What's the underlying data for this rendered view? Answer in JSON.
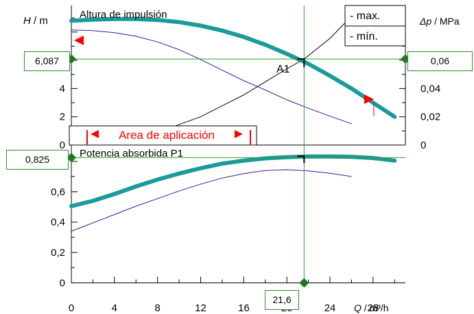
{
  "colors": {
    "max_curve": "#1a9a9a",
    "min_curve": "#2a1aa0",
    "system_curve": "#000000",
    "cursor": "#2ca02c",
    "marker": "#1e7a1e",
    "range": "#ff0000"
  },
  "readouts": {
    "head": "6,087",
    "pressure": "0,06",
    "power": "0,825",
    "flow": "21,6",
    "point": "A1"
  },
  "chart_data": [
    {
      "type": "line",
      "title": "Altura de impulsión",
      "ylabel_left": {
        "sym": "H",
        "unit": " / m"
      },
      "ylabel_right": {
        "sym": "Δp",
        "unit": " / MPa"
      },
      "xlim": [
        0,
        31
      ],
      "ylim": [
        0,
        9.5
      ],
      "y_ticks": [
        0,
        2,
        4,
        6,
        8
      ],
      "y_tick_labels": [
        "0",
        "2",
        "4",
        "",
        ""
      ],
      "y2_ticks": [
        0,
        0.02,
        0.04,
        0.06,
        0.08
      ],
      "y2_tick_labels": [
        "0",
        "0,02",
        "0,04",
        "",
        ""
      ],
      "legend": [
        "- max.",
        "- mín."
      ],
      "legend_position": "top-right",
      "grid": false,
      "series": [
        {
          "name": "max.",
          "x": [
            0,
            2,
            4,
            6,
            8,
            10,
            12,
            14,
            16,
            18,
            20,
            22,
            24,
            26,
            28,
            30
          ],
          "y": [
            8.8,
            8.87,
            8.92,
            8.92,
            8.85,
            8.7,
            8.45,
            8.1,
            7.65,
            7.1,
            6.45,
            5.75,
            4.9,
            4.0,
            3.0,
            2.0
          ]
        },
        {
          "name": "mín.",
          "x": [
            0,
            2,
            4,
            6,
            8,
            10,
            12,
            14,
            16,
            18,
            20,
            22,
            24,
            26
          ],
          "y": [
            8.15,
            8.1,
            7.95,
            7.7,
            7.3,
            6.75,
            6.05,
            5.3,
            4.55,
            3.9,
            3.2,
            2.6,
            2.05,
            1.5
          ]
        },
        {
          "name": "system",
          "x": [
            0,
            4,
            8,
            12,
            16,
            20,
            21.6,
            24,
            26.5
          ],
          "y": [
            0.1,
            0.28,
            0.9,
            2.0,
            3.55,
            5.4,
            6.087,
            7.55,
            9.5
          ]
        }
      ],
      "operating_point": {
        "label": "A1",
        "x": 21.6,
        "y": 6.087
      },
      "application_range": {
        "label": "Area de aplicación",
        "x_start": 1.7,
        "x_end": 18.3
      }
    },
    {
      "type": "line",
      "title": "Potencia absorbida P1",
      "xlabel": {
        "sym": "Q",
        "unit": " / m³/h"
      },
      "xlim": [
        0,
        31
      ],
      "ylim": [
        0,
        0.9
      ],
      "x_ticks": [
        0,
        4,
        8,
        12,
        16,
        20,
        24,
        28
      ],
      "x_tick_labels": [
        "0",
        "4",
        "8",
        "12",
        "16",
        "20",
        "24",
        "28"
      ],
      "y_ticks": [
        0,
        0.2,
        0.4,
        0.6,
        0.8
      ],
      "y_tick_labels": [
        "0",
        "0,2",
        "0,4",
        "0,6",
        ""
      ],
      "grid": false,
      "series": [
        {
          "name": "max.",
          "x": [
            0,
            2,
            4,
            6,
            8,
            10,
            12,
            14,
            16,
            18,
            20,
            22,
            24,
            26,
            28,
            30
          ],
          "y": [
            0.505,
            0.54,
            0.585,
            0.635,
            0.68,
            0.72,
            0.755,
            0.785,
            0.805,
            0.82,
            0.828,
            0.832,
            0.832,
            0.83,
            0.822,
            0.805
          ]
        },
        {
          "name": "mín.",
          "x": [
            0,
            2,
            4,
            6,
            8,
            10,
            12,
            14,
            16,
            18,
            20,
            22,
            24,
            26
          ],
          "y": [
            0.34,
            0.395,
            0.45,
            0.505,
            0.555,
            0.605,
            0.65,
            0.69,
            0.72,
            0.74,
            0.745,
            0.738,
            0.722,
            0.7
          ]
        }
      ],
      "operating_point": {
        "x": 21.6,
        "y": 0.825
      }
    }
  ]
}
